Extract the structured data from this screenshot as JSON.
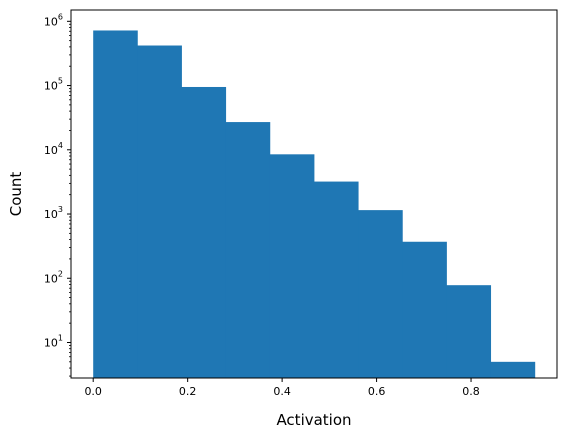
{
  "chart_data": {
    "type": "bar",
    "subtype": "histogram",
    "xlabel": "Activation",
    "ylabel": "Count",
    "yscale": "log",
    "bin_edges": [
      0.0,
      0.0935,
      0.187,
      0.2805,
      0.374,
      0.4675,
      0.561,
      0.6545,
      0.748,
      0.8415,
      0.935
    ],
    "counts": [
      720000,
      420000,
      95000,
      27000,
      8500,
      3200,
      1150,
      370,
      78,
      5
    ],
    "xlim": [
      -0.047,
      0.982
    ],
    "ylim": [
      2.8,
      1500000
    ],
    "xticks": [
      0.0,
      0.2,
      0.4,
      0.6,
      0.8
    ],
    "xtick_labels": [
      "0.0",
      "0.2",
      "0.4",
      "0.6",
      "0.8"
    ],
    "yticks_major": [
      10,
      100,
      1000,
      10000,
      100000,
      1000000
    ],
    "ytick_labels": [
      {
        "base": "10",
        "exp": "1"
      },
      {
        "base": "10",
        "exp": "2"
      },
      {
        "base": "10",
        "exp": "3"
      },
      {
        "base": "10",
        "exp": "4"
      },
      {
        "base": "10",
        "exp": "5"
      },
      {
        "base": "10",
        "exp": "6"
      }
    ],
    "grid": false,
    "bar_color": "#1f77b4"
  }
}
